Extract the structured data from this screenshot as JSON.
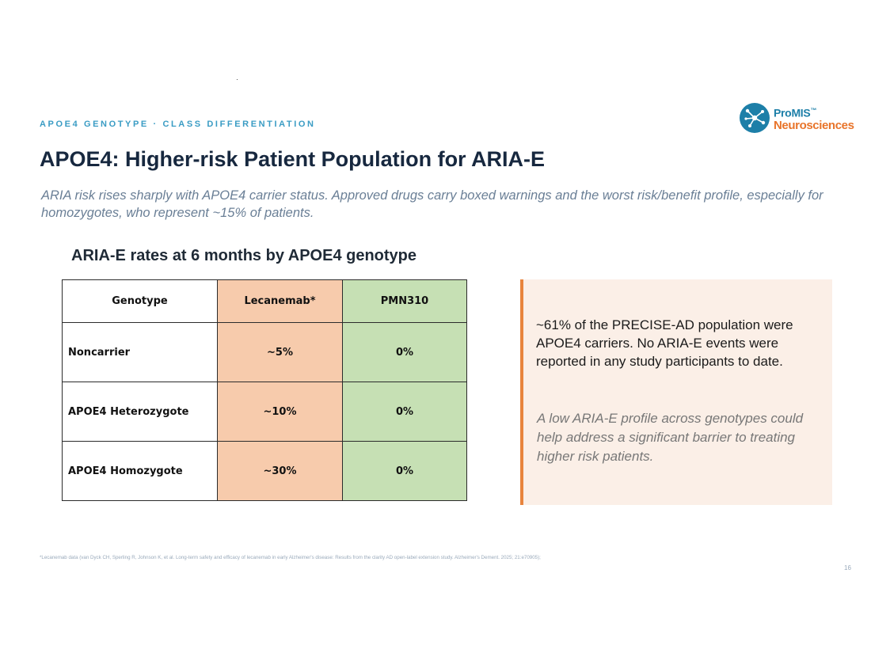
{
  "slide": {
    "eyebrow": "APOE4 GENOTYPE · CLASS DIFFERENTIATION",
    "title": "APOE4: Higher-risk Patient Population for ARIA-E",
    "subtitle": "ARIA risk rises sharply with APOE4 carrier status.  Approved drugs carry boxed warnings and the worst risk/benefit profile, especially for homozygotes, who represent ~15% of patients.",
    "page_number": "16"
  },
  "logo": {
    "line1": "ProMIS",
    "trademark": "™",
    "line2": "Neurosciences",
    "colors": {
      "primary": "#1d7fa8",
      "accent": "#e8742a"
    }
  },
  "table": {
    "title": "ARIA-E rates at 6 months by APOE4 genotype",
    "headers": [
      "Genotype",
      "Lecanemab*",
      "PMN310"
    ],
    "rows": [
      [
        "Noncarrier",
        "~5%",
        "0%"
      ],
      [
        "APOE4 Heterozygote",
        "~10%",
        "0%"
      ],
      [
        "APOE4 Homozygote",
        "~30%",
        "0%"
      ]
    ],
    "colors": {
      "lecanemab": "#f7cbac",
      "pmn310": "#c6e0b4"
    }
  },
  "callout": {
    "main": "~61% of the PRECISE-AD population were APOE4 carriers.  No ARIA-E events were reported in any study participants to date.",
    "note": "A low ARIA-E profile across genotypes could help address a significant barrier to treating higher risk patients.",
    "colors": {
      "background": "#fbefe7",
      "border": "#e8843d"
    }
  },
  "footnote": "*Lecanemab data (van Dyck CH, Sperling R, Johnson K, et al. Long-term safety and efficacy of lecanemab in early Alzheimer's disease: Results from the clarity AD open-label extension study. Alzheimer's Dement. 2025; 21:e70905);"
}
